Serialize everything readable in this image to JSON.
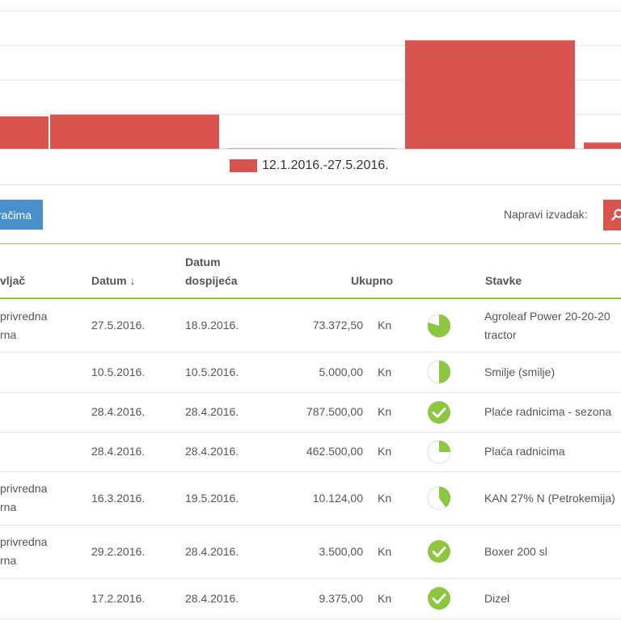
{
  "chart_data": {
    "type": "bar",
    "legend": "12.1.2016.-27.5.2016.",
    "series_color": "#d9534f",
    "grid": true,
    "values": [
      235000,
      248000,
      3000,
      787500,
      45000
    ],
    "ylim": [
      0,
      1050000
    ]
  },
  "toolbar": {
    "filter_label": "Po obračima",
    "export_label": "Napravi izvadak:",
    "export_icon": "search-icon"
  },
  "table": {
    "headers": {
      "supplier": "vljač",
      "date": "Datum ↓",
      "due_line1": "Datum",
      "due_line2": "dospijeća",
      "total": "Ukupno",
      "items": "Stavke"
    },
    "rows": [
      {
        "supplier1": "privredna",
        "supplier2": "rna",
        "date": "27.5.2016.",
        "due": "18.9.2016.",
        "amount": "73.372,50",
        "currency": "Kn",
        "status": 0.8,
        "items1": "Agroleaf Power 20-20-20",
        "items2": "tractor"
      },
      {
        "supplier1": "",
        "supplier2": "",
        "date": "10.5.2016.",
        "due": "10.5.2016.",
        "amount": "5.000,00",
        "currency": "Kn",
        "status": 0.5,
        "items1": "Smilje (smilje)",
        "items2": ""
      },
      {
        "supplier1": "",
        "supplier2": "",
        "date": "28.4.2016.",
        "due": "28.4.2016.",
        "amount": "787.500,00",
        "currency": "Kn",
        "status": 1,
        "items1": "Plaće radnicima - sezona",
        "items2": ""
      },
      {
        "supplier1": "",
        "supplier2": "",
        "date": "28.4.2016.",
        "due": "28.4.2016.",
        "amount": "462.500,00",
        "currency": "Kn",
        "status": 0.25,
        "items1": "Plaća radnicima",
        "items2": ""
      },
      {
        "supplier1": "privredna",
        "supplier2": "rna",
        "date": "16.3.2016.",
        "due": "19.5.2016.",
        "amount": "10.124,00",
        "currency": "Kn",
        "status": 0.4,
        "items1": "KAN 27% N (Petrokemija)",
        "items2": ""
      },
      {
        "supplier1": "privredna",
        "supplier2": "rna",
        "date": "29.2.2016.",
        "due": "28.4.2016.",
        "amount": "3.500,00",
        "currency": "Kn",
        "status": 1,
        "items1": "Boxer 200 sl",
        "items2": ""
      },
      {
        "supplier1": "",
        "supplier2": "",
        "date": "17.2.2016.",
        "due": "28.4.2016.",
        "amount": "9.375,00",
        "currency": "Kn",
        "status": 1,
        "items1": "Dizel",
        "items2": ""
      }
    ]
  },
  "colors": {
    "accent_green": "#8dc63f",
    "button_blue": "#4a90c8",
    "button_red": "#d9534f"
  }
}
